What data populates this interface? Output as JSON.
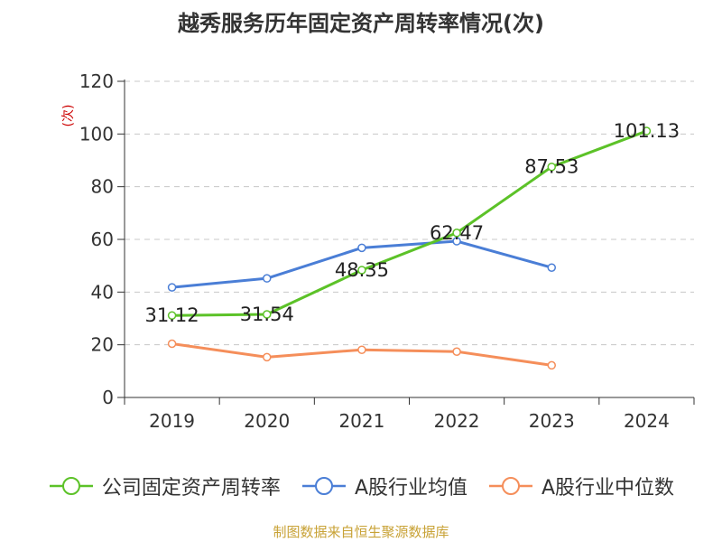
{
  "title": "越秀服务历年固定资产周转率情况(次)",
  "source": "制图数据来自恒生聚源数据库",
  "chart_data": {
    "type": "line",
    "categories": [
      "2019",
      "2020",
      "2021",
      "2022",
      "2023",
      "2024"
    ],
    "ylabel": "(次)",
    "ylim": [
      0,
      120
    ],
    "yticks": [
      0,
      20,
      40,
      60,
      80,
      100,
      120
    ],
    "grid": true,
    "legend_position": "bottom",
    "series": [
      {
        "name": "公司固定资产周转率",
        "color": "#5cc228",
        "values": [
          31.12,
          31.54,
          48.35,
          62.47,
          87.53,
          101.13
        ],
        "labels": [
          "31.12",
          "31.54",
          "48.35",
          "62.47",
          "87.53",
          "101.13"
        ]
      },
      {
        "name": "A股行业均值",
        "color": "#4a7ed6",
        "values": [
          41.8,
          45.2,
          56.8,
          59.3,
          49.3,
          null
        ]
      },
      {
        "name": "A股行业中位数",
        "color": "#f58e5a",
        "values": [
          20.4,
          15.3,
          18.1,
          17.4,
          12.2,
          null
        ]
      }
    ]
  }
}
